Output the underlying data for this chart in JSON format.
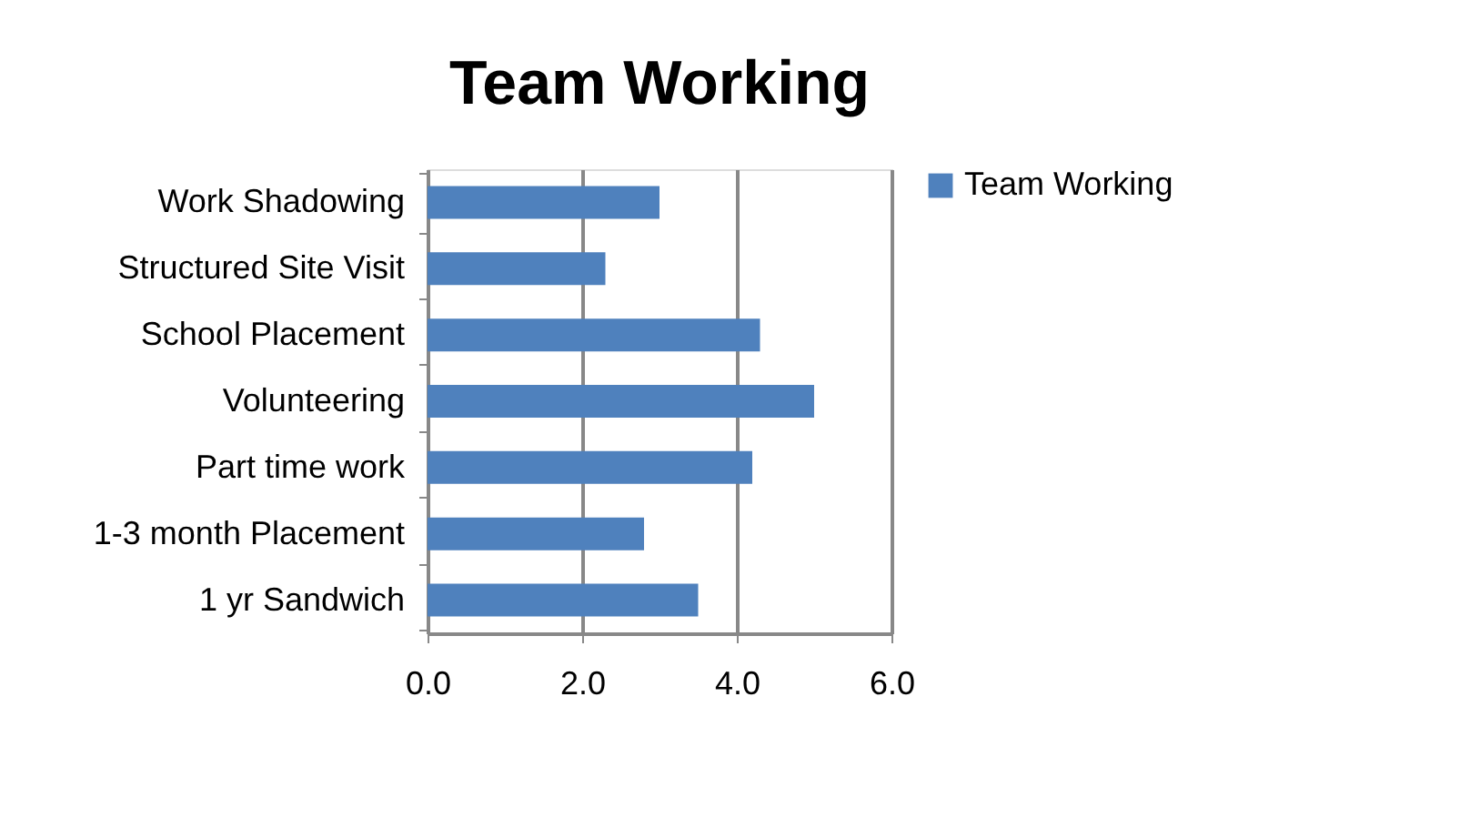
{
  "chart_data": {
    "type": "bar",
    "orientation": "horizontal",
    "title": "Team Working",
    "categories": [
      "Work Shadowing",
      "Structured Site Visit",
      "School Placement",
      "Volunteering",
      "Part time work",
      "1-3 month Placement",
      "1 yr Sandwich"
    ],
    "series": [
      {
        "name": "Team Working",
        "color": "#4f81bd",
        "values": [
          3.0,
          2.3,
          4.3,
          5.0,
          4.2,
          2.8,
          3.5
        ]
      }
    ],
    "xlim": [
      0,
      6
    ],
    "xticks": [
      {
        "value": 0,
        "label": "0.0"
      },
      {
        "value": 2,
        "label": "2.0"
      },
      {
        "value": 4,
        "label": "4.0"
      },
      {
        "value": 6,
        "label": "6.0"
      }
    ],
    "grid": "x",
    "legend": "right"
  }
}
